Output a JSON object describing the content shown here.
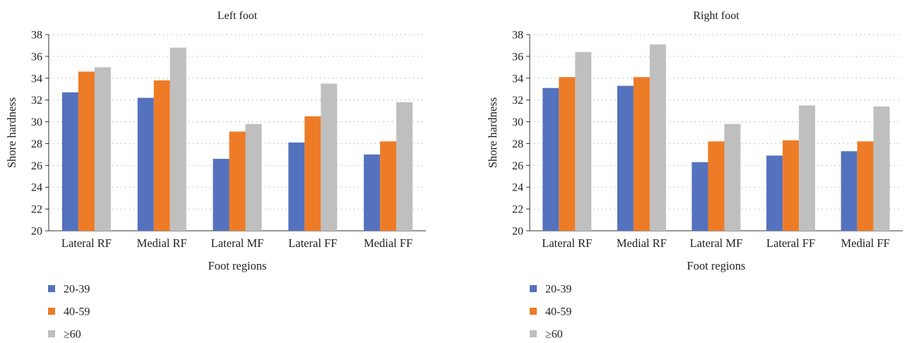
{
  "colors": {
    "20-39": "#5472bd",
    "40-59": "#ee7b26",
    "≥60": "#bfbfbf"
  },
  "chart_data": [
    {
      "type": "bar",
      "title": "Left foot",
      "xlabel": "Foot regions",
      "ylabel": "Shore hardness",
      "ylim": [
        20,
        38
      ],
      "yticks": [
        "20",
        "22",
        "24",
        "26",
        "28",
        "30",
        "32",
        "34",
        "36",
        "38"
      ],
      "grid": "dotted horizontal",
      "legend_position": "bottom-left",
      "categories": [
        "Lateral RF",
        "Medial RF",
        "Lateral MF",
        "Lateral FF",
        "Medial FF"
      ],
      "series": [
        {
          "name": "20-39",
          "values": [
            32.7,
            32.2,
            26.6,
            28.1,
            27.0
          ]
        },
        {
          "name": "40-59",
          "values": [
            34.6,
            33.8,
            29.1,
            30.5,
            28.2
          ]
        },
        {
          "name": "≥60",
          "values": [
            35.0,
            36.8,
            29.8,
            33.5,
            31.8
          ]
        }
      ]
    },
    {
      "type": "bar",
      "title": "Right foot",
      "xlabel": "Foot regions",
      "ylabel": "Shore hardness",
      "ylim": [
        20,
        38
      ],
      "yticks": [
        "20",
        "22",
        "24",
        "26",
        "28",
        "30",
        "32",
        "34",
        "36",
        "38"
      ],
      "grid": "dotted horizontal",
      "legend_position": "bottom-left",
      "categories": [
        "Lateral RF",
        "Medial RF",
        "Lateral MF",
        "Lateral FF",
        "Medial FF"
      ],
      "series": [
        {
          "name": "20-39",
          "values": [
            33.1,
            33.3,
            26.3,
            26.9,
            27.3
          ]
        },
        {
          "name": "40-59",
          "values": [
            34.1,
            34.1,
            28.2,
            28.3,
            28.2
          ]
        },
        {
          "name": "≥60",
          "values": [
            36.4,
            37.1,
            29.8,
            31.5,
            31.4
          ]
        }
      ]
    }
  ]
}
